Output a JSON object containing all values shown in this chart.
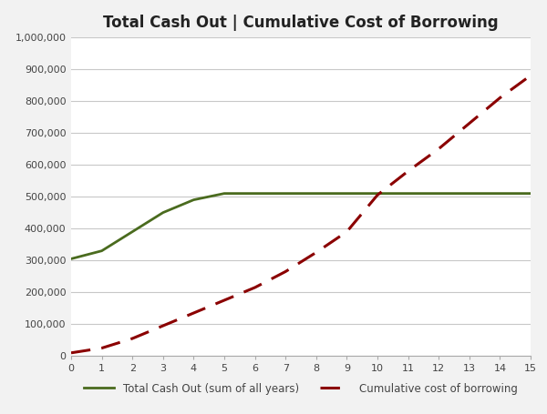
{
  "title": "Total Cash Out | Cumulative Cost of Borrowing",
  "x_cash_out": [
    0,
    1,
    2,
    3,
    4,
    5,
    6,
    7,
    8,
    9,
    10,
    11,
    12,
    13,
    14,
    15
  ],
  "y_cash_out": [
    305000,
    330000,
    390000,
    450000,
    490000,
    510000,
    510000,
    510000,
    510000,
    510000,
    510000,
    510000,
    510000,
    510000,
    510000,
    510000
  ],
  "x_cumulative": [
    0,
    1,
    2,
    3,
    4,
    5,
    6,
    7,
    8,
    9,
    10,
    11,
    12,
    13,
    14,
    15
  ],
  "y_cumulative": [
    10000,
    25000,
    55000,
    95000,
    135000,
    175000,
    215000,
    265000,
    325000,
    390000,
    505000,
    580000,
    650000,
    730000,
    810000,
    880000
  ],
  "cash_out_color": "#4a6b1e",
  "cumulative_color": "#8b0000",
  "cash_out_label": "Total Cash Out (sum of all years)",
  "cumulative_label": "Cumulative cost of borrowing",
  "xlim": [
    0,
    15
  ],
  "ylim": [
    0,
    1000000
  ],
  "yticks": [
    0,
    100000,
    200000,
    300000,
    400000,
    500000,
    600000,
    700000,
    800000,
    900000,
    1000000
  ],
  "xticks": [
    0,
    1,
    2,
    3,
    4,
    5,
    6,
    7,
    8,
    9,
    10,
    11,
    12,
    13,
    14,
    15
  ],
  "background_color": "#f2f2f2",
  "plot_bg_color": "#ffffff",
  "grid_color": "#c8c8c8",
  "title_fontsize": 12,
  "legend_fontsize": 8.5,
  "tick_fontsize": 8
}
